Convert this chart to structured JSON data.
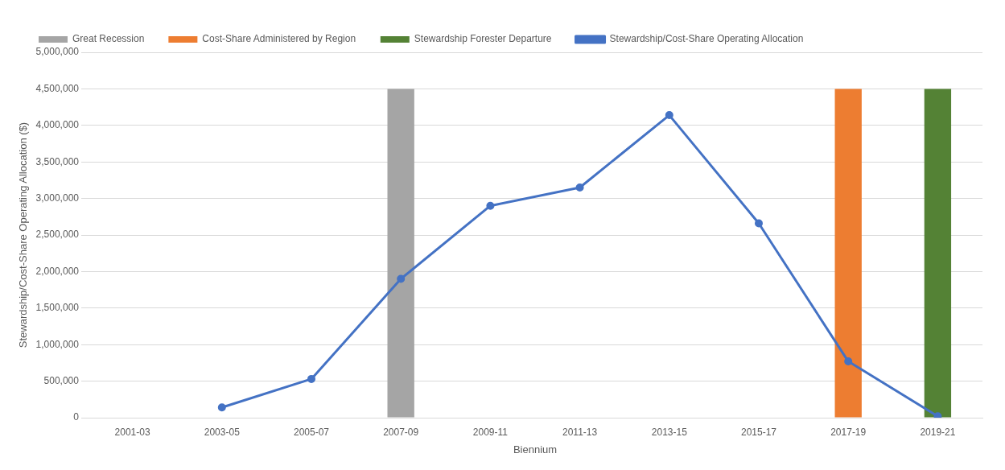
{
  "chart_data": {
    "type": "line",
    "xlabel": "Biennium",
    "ylabel": "Stewardship/Cost-Share Operating Allocation ($)",
    "categories": [
      "2001-03",
      "2003-05",
      "2005-07",
      "2007-09",
      "2009-11",
      "2011-13",
      "2013-15",
      "2015-17",
      "2017-19",
      "2019-21"
    ],
    "series": [
      {
        "name": "Great Recession",
        "type": "bar",
        "color": "#a5a5a5",
        "values": [
          null,
          null,
          null,
          4500000,
          null,
          null,
          null,
          null,
          null,
          null
        ]
      },
      {
        "name": "Cost-Share Administered by Region",
        "type": "bar",
        "color": "#ed7d31",
        "values": [
          null,
          null,
          null,
          null,
          null,
          null,
          null,
          null,
          4500000,
          null
        ]
      },
      {
        "name": "Stewardship Forester Departure",
        "type": "bar",
        "color": "#548235",
        "values": [
          null,
          null,
          null,
          null,
          null,
          null,
          null,
          null,
          null,
          4500000
        ]
      },
      {
        "name": "Stewardship/Cost-Share Operating Allocation",
        "color": "#4472c4",
        "values": [
          null,
          140000,
          530000,
          1900000,
          2900000,
          3150000,
          4140000,
          2660000,
          770000,
          20000
        ]
      }
    ],
    "ylim": [
      0,
      5000000
    ],
    "yticks": [
      0,
      {
        "value": 500000,
        "label": "500,000"
      },
      {
        "value": 1000000,
        "label": "1,000,000"
      },
      {
        "value": 1500000,
        "label": "1,500,000"
      },
      {
        "value": 2000000,
        "label": "2,000,000"
      },
      {
        "value": 2500000,
        "label": "2,500,000"
      },
      {
        "value": 3000000,
        "label": "3,000,000"
      },
      {
        "value": 3500000,
        "label": "3,500,000"
      },
      {
        "value": 4000000,
        "label": "4,000,000"
      },
      {
        "value": 4500000,
        "label": "4,500,000"
      },
      {
        "value": 5000000,
        "label": "5,000,000"
      }
    ],
    "grid": "y",
    "legend": "top",
    "marker": "circle",
    "line_style": "solid"
  }
}
